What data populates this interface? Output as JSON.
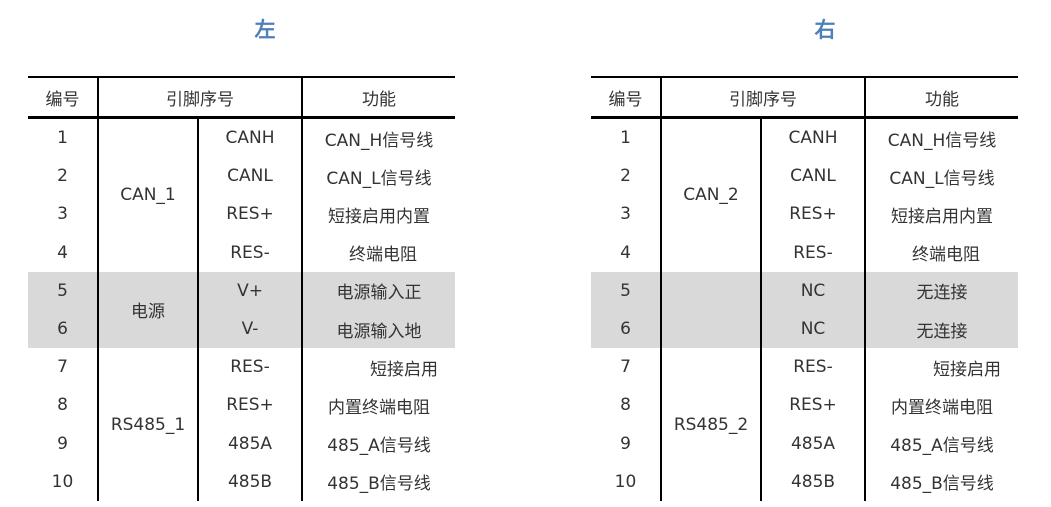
{
  "tables": [
    {
      "title": "左",
      "headers": {
        "num": "编号",
        "pin": "引脚序号",
        "func": "功能"
      },
      "groups": [
        "CAN_1",
        "电源",
        "RS485_1"
      ],
      "rows": [
        {
          "num": "1",
          "pin": "CANH",
          "func": "CAN_H信号线"
        },
        {
          "num": "2",
          "pin": "CANL",
          "func": "CAN_L信号线"
        },
        {
          "num": "3",
          "pin": "RES+",
          "func": "短接启用内置"
        },
        {
          "num": "4",
          "pin": "RES-",
          "func": "终端电阻"
        },
        {
          "num": "5",
          "pin": "V+",
          "func": "电源输入正"
        },
        {
          "num": "6",
          "pin": "V-",
          "func": "电源输入地"
        },
        {
          "num": "7",
          "pin": "RES-",
          "func": "短接启用"
        },
        {
          "num": "8",
          "pin": "RES+",
          "func": "内置终端电阻"
        },
        {
          "num": "9",
          "pin": "485A",
          "func": "485_A信号线"
        },
        {
          "num": "10",
          "pin": "485B",
          "func": "485_B信号线"
        }
      ]
    },
    {
      "title": "右",
      "headers": {
        "num": "编号",
        "pin": "引脚序号",
        "func": "功能"
      },
      "groups": [
        "CAN_2",
        "",
        "RS485_2"
      ],
      "rows": [
        {
          "num": "1",
          "pin": "CANH",
          "func": "CAN_H信号线"
        },
        {
          "num": "2",
          "pin": "CANL",
          "func": "CAN_L信号线"
        },
        {
          "num": "3",
          "pin": "RES+",
          "func": "短接启用内置"
        },
        {
          "num": "4",
          "pin": "RES-",
          "func": "终端电阻"
        },
        {
          "num": "5",
          "pin": "NC",
          "func": "无连接"
        },
        {
          "num": "6",
          "pin": "NC",
          "func": "无连接"
        },
        {
          "num": "7",
          "pin": "RES-",
          "func": "短接启用"
        },
        {
          "num": "8",
          "pin": "RES+",
          "func": "内置终端电阻"
        },
        {
          "num": "9",
          "pin": "485A",
          "func": "485_A信号线"
        },
        {
          "num": "10",
          "pin": "485B",
          "func": "485_B信号线"
        }
      ]
    }
  ],
  "colors": {
    "title": "#4f7fb8",
    "highlight_row": "#d9d9d9"
  }
}
